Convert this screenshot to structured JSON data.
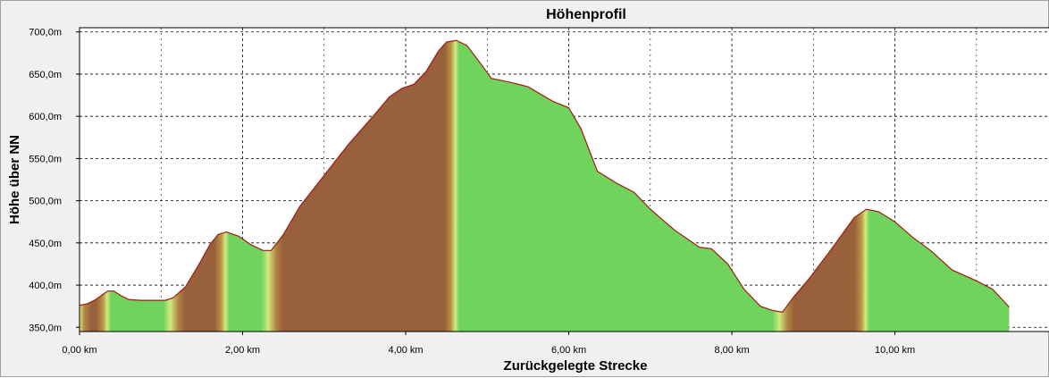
{
  "chart_data": {
    "type": "area",
    "title": "Höhenprofil",
    "xlabel": "Zurückgelegte Strecke",
    "ylabel": "Höhe über NN",
    "xlim": [
      0,
      11.9
    ],
    "ylim": [
      345,
      705
    ],
    "x_ticks": [
      {
        "value": 0,
        "label": "0,00 km"
      },
      {
        "value": 2,
        "label": "2,00 km"
      },
      {
        "value": 4,
        "label": "4,00 km"
      },
      {
        "value": 6,
        "label": "6,00 km"
      },
      {
        "value": 8,
        "label": "8,00 km"
      },
      {
        "value": 10,
        "label": "10,00 km"
      }
    ],
    "y_ticks": [
      {
        "value": 350,
        "label": "350,0m"
      },
      {
        "value": 400,
        "label": "400,0m"
      },
      {
        "value": 450,
        "label": "450,0m"
      },
      {
        "value": 500,
        "label": "500,0m"
      },
      {
        "value": 550,
        "label": "550,0m"
      },
      {
        "value": 600,
        "label": "600,0m"
      },
      {
        "value": 650,
        "label": "650,0m"
      },
      {
        "value": 700,
        "label": "700,0m"
      }
    ],
    "grid": true,
    "profile": {
      "x": [
        0,
        0.1,
        0.2,
        0.3,
        0.35,
        0.42,
        0.5,
        0.6,
        0.75,
        0.9,
        1.05,
        1.15,
        1.3,
        1.45,
        1.6,
        1.7,
        1.8,
        1.95,
        2.1,
        2.25,
        2.35,
        2.5,
        2.7,
        3.0,
        3.3,
        3.6,
        3.8,
        3.95,
        4.1,
        4.25,
        4.4,
        4.5,
        4.62,
        4.75,
        4.9,
        5.05,
        5.3,
        5.5,
        5.8,
        6.0,
        6.15,
        6.35,
        6.6,
        6.8,
        7.0,
        7.3,
        7.6,
        7.75,
        7.95,
        8.15,
        8.35,
        8.5,
        8.62,
        8.75,
        8.95,
        9.2,
        9.5,
        9.65,
        9.8,
        10.0,
        10.2,
        10.45,
        10.7,
        11.0,
        11.2,
        11.4
      ],
      "y": [
        376,
        378,
        383,
        390,
        393,
        393,
        388,
        383,
        382,
        382,
        382,
        385,
        398,
        422,
        448,
        460,
        463,
        458,
        448,
        441,
        441,
        460,
        493,
        530,
        567,
        600,
        623,
        633,
        638,
        653,
        677,
        688,
        690,
        684,
        665,
        645,
        640,
        635,
        618,
        610,
        585,
        535,
        520,
        510,
        490,
        465,
        445,
        443,
        425,
        395,
        375,
        370,
        368,
        385,
        408,
        440,
        480,
        490,
        487,
        475,
        458,
        440,
        418,
        405,
        395,
        374
      ]
    },
    "climb_segments": [
      [
        0,
        0.35
      ],
      [
        1.15,
        1.8
      ],
      [
        2.35,
        4.62
      ],
      [
        8.62,
        9.65
      ]
    ]
  }
}
